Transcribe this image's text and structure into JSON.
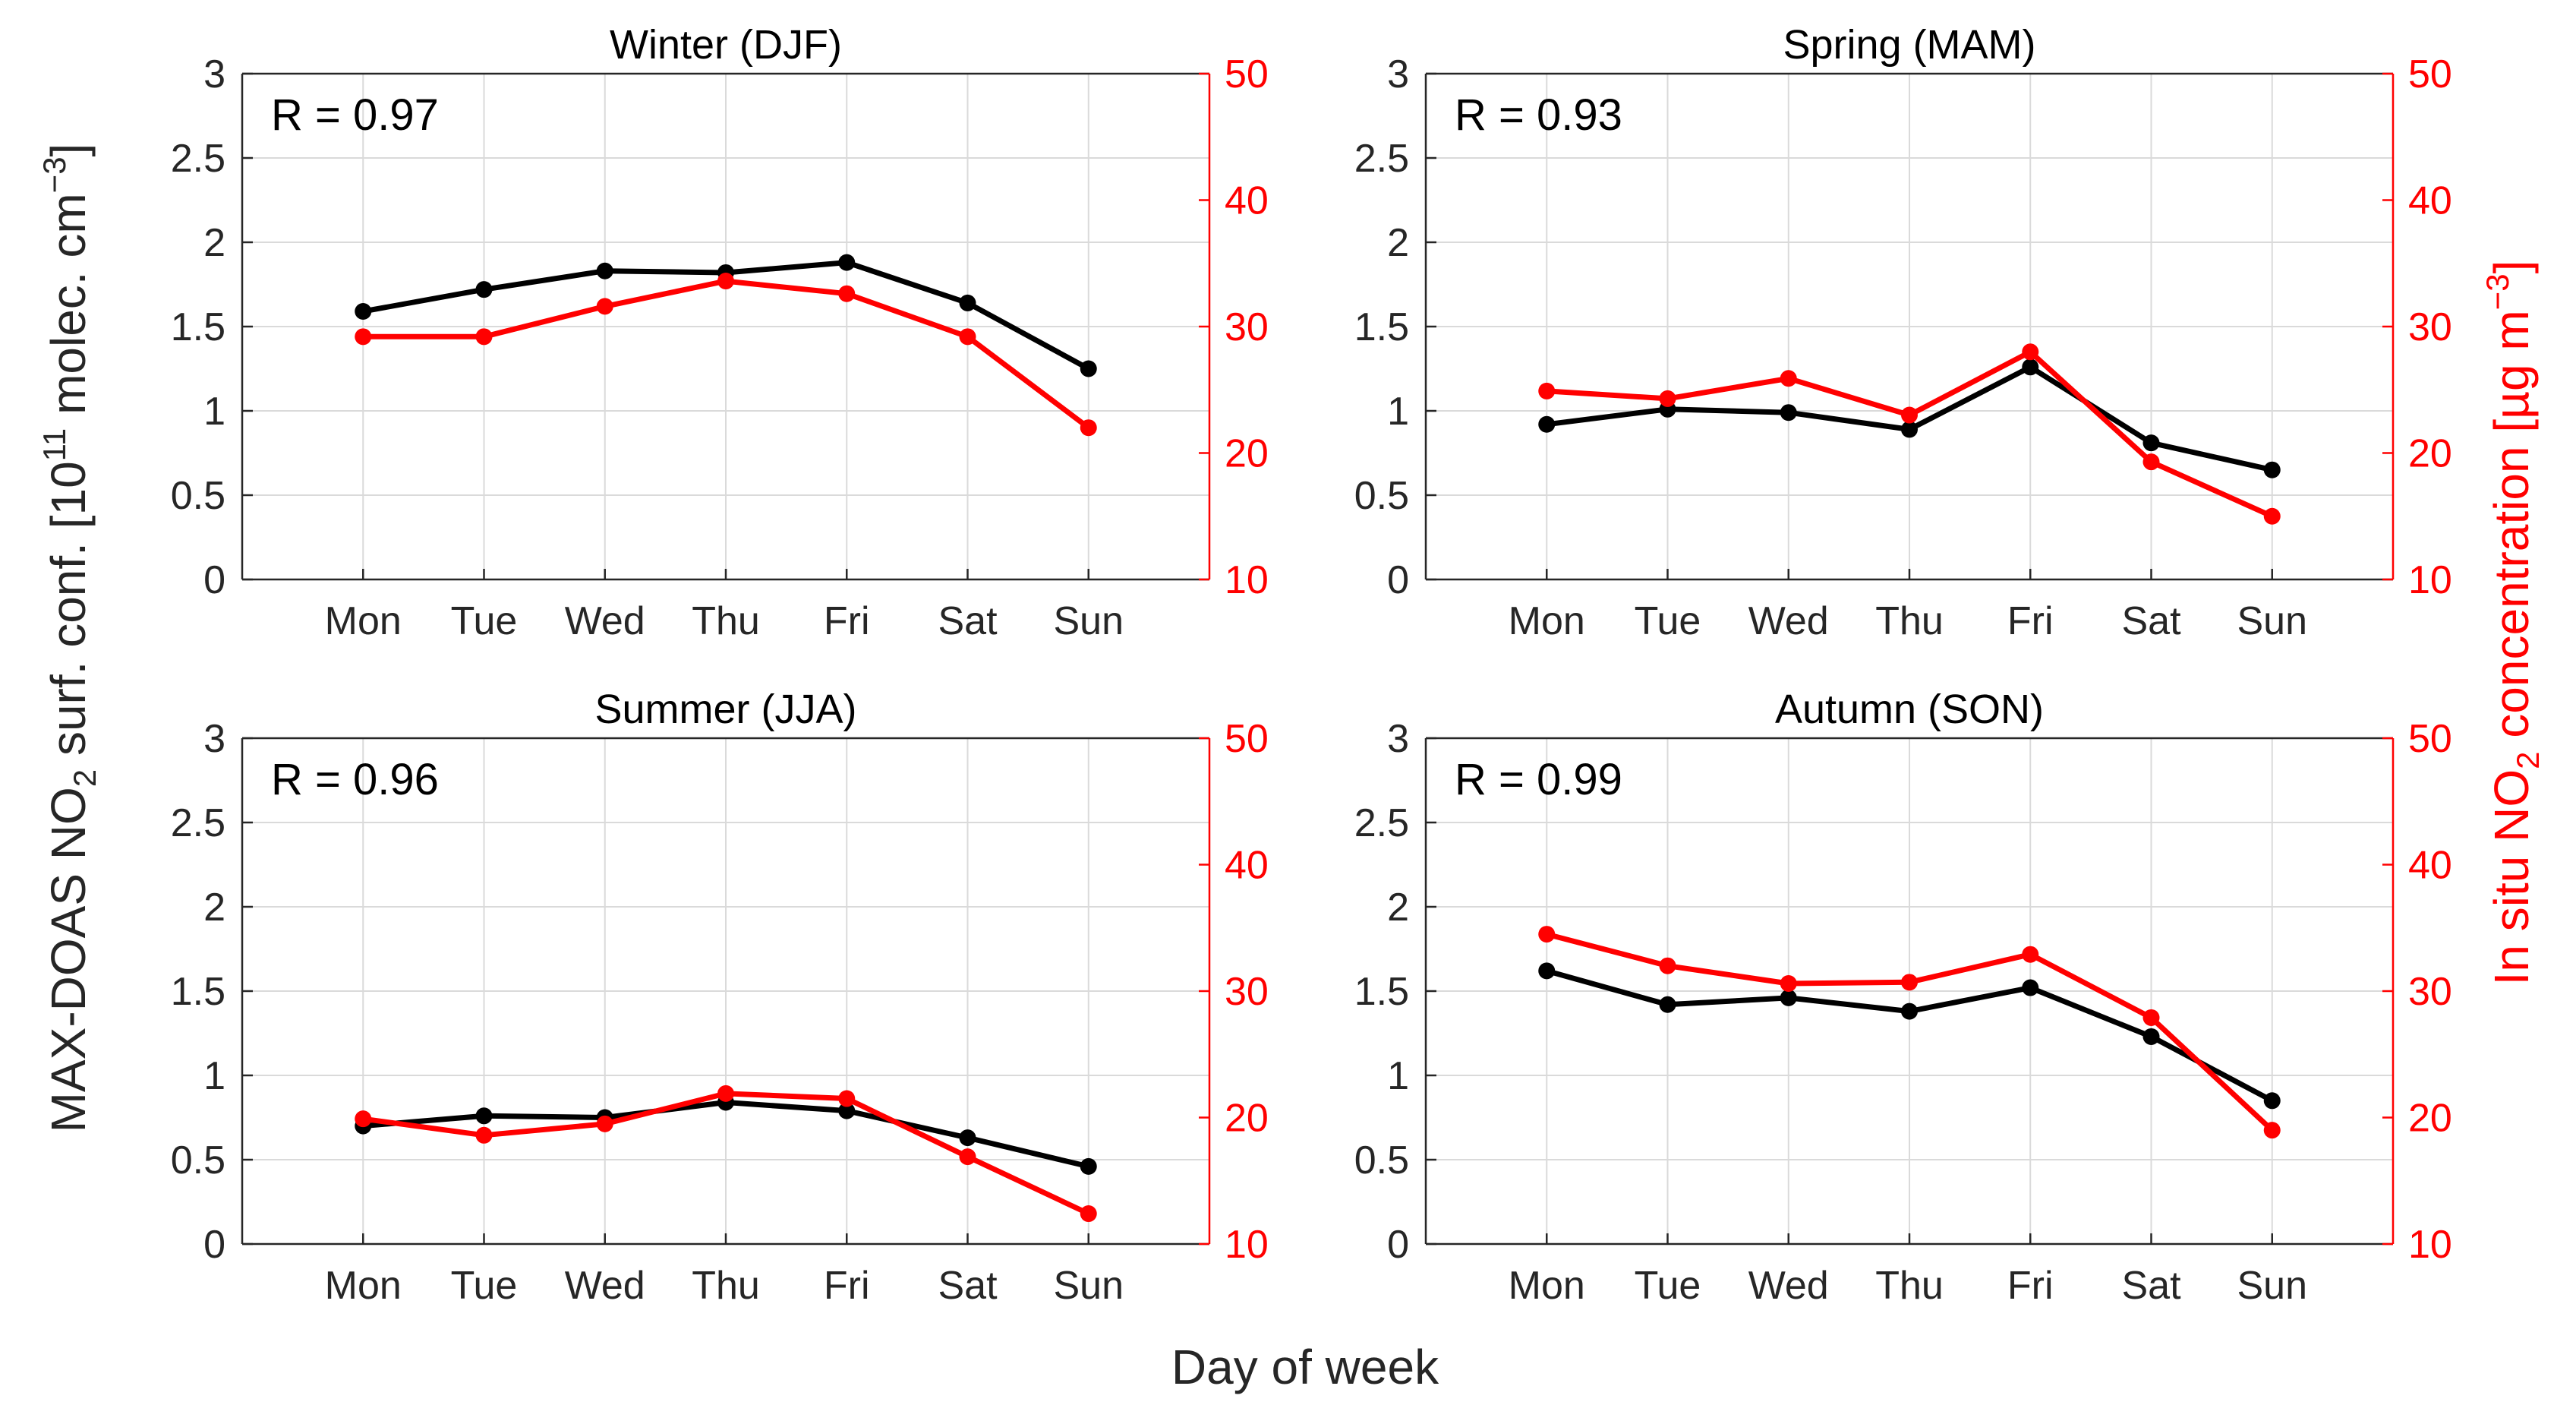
{
  "figure": {
    "xlabel": "Day of week",
    "ylabel_left_parts": [
      "MAX-DOAS NO",
      "2",
      " surf. conf. [10",
      "11",
      " molec. cm",
      "−3",
      "]"
    ],
    "ylabel_right_parts": [
      "In situ NO",
      "2",
      " concentration [µg m",
      "−3",
      "]"
    ]
  },
  "colors": {
    "left_series": "#000000",
    "right_series": "#ff0000",
    "grid": "#dadada",
    "axis": "#262626"
  },
  "chart_data": [
    {
      "type": "line",
      "title": "Winter (DJF)",
      "annotation": "R = 0.97",
      "categories": [
        "Mon",
        "Tue",
        "Wed",
        "Thu",
        "Fri",
        "Sat",
        "Sun"
      ],
      "left_ylim": [
        0,
        3
      ],
      "left_yticks": [
        "0",
        "0.5",
        "1",
        "1.5",
        "2",
        "2.5",
        "3"
      ],
      "right_ylim": [
        10,
        50
      ],
      "right_yticks": [
        "10",
        "20",
        "30",
        "40",
        "50"
      ],
      "series": [
        {
          "name": "MAX-DOAS NO2 surf. conf.",
          "axis": "left",
          "values": [
            1.59,
            1.72,
            1.83,
            1.82,
            1.88,
            1.64,
            1.25
          ]
        },
        {
          "name": "In situ NO2 concentration",
          "axis": "right",
          "values": [
            29.2,
            29.2,
            31.6,
            33.6,
            32.6,
            29.2,
            22.0
          ]
        }
      ]
    },
    {
      "type": "line",
      "title": "Spring (MAM)",
      "annotation": "R = 0.93",
      "categories": [
        "Mon",
        "Tue",
        "Wed",
        "Thu",
        "Fri",
        "Sat",
        "Sun"
      ],
      "left_ylim": [
        0,
        3
      ],
      "left_yticks": [
        "0",
        "0.5",
        "1",
        "1.5",
        "2",
        "2.5",
        "3"
      ],
      "right_ylim": [
        10,
        50
      ],
      "right_yticks": [
        "10",
        "20",
        "30",
        "40",
        "50"
      ],
      "series": [
        {
          "name": "MAX-DOAS NO2 surf. conf.",
          "axis": "left",
          "values": [
            0.92,
            1.01,
            0.99,
            0.89,
            1.26,
            0.81,
            0.65
          ]
        },
        {
          "name": "In situ NO2 concentration",
          "axis": "right",
          "values": [
            24.9,
            24.3,
            25.9,
            23.0,
            28.0,
            19.3,
            15.0
          ]
        }
      ]
    },
    {
      "type": "line",
      "title": "Summer (JJA)",
      "annotation": "R = 0.96",
      "categories": [
        "Mon",
        "Tue",
        "Wed",
        "Thu",
        "Fri",
        "Sat",
        "Sun"
      ],
      "left_ylim": [
        0,
        3
      ],
      "left_yticks": [
        "0",
        "0.5",
        "1",
        "1.5",
        "2",
        "2.5",
        "3"
      ],
      "right_ylim": [
        10,
        50
      ],
      "right_yticks": [
        "10",
        "20",
        "30",
        "40",
        "50"
      ],
      "series": [
        {
          "name": "MAX-DOAS NO2 surf. conf.",
          "axis": "left",
          "values": [
            0.7,
            0.76,
            0.75,
            0.84,
            0.79,
            0.63,
            0.46
          ]
        },
        {
          "name": "In situ NO2 concentration",
          "axis": "right",
          "values": [
            19.9,
            18.6,
            19.5,
            21.9,
            21.5,
            16.9,
            12.4
          ]
        }
      ]
    },
    {
      "type": "line",
      "title": "Autumn (SON)",
      "annotation": "R = 0.99",
      "categories": [
        "Mon",
        "Tue",
        "Wed",
        "Thu",
        "Fri",
        "Sat",
        "Sun"
      ],
      "left_ylim": [
        0,
        3
      ],
      "left_yticks": [
        "0",
        "0.5",
        "1",
        "1.5",
        "2",
        "2.5",
        "3"
      ],
      "right_ylim": [
        10,
        50
      ],
      "right_yticks": [
        "10",
        "20",
        "30",
        "40",
        "50"
      ],
      "series": [
        {
          "name": "MAX-DOAS NO2 surf. conf.",
          "axis": "left",
          "values": [
            1.62,
            1.42,
            1.46,
            1.38,
            1.52,
            1.23,
            0.85
          ]
        },
        {
          "name": "In situ NO2 concentration",
          "axis": "right",
          "values": [
            34.5,
            32.0,
            30.6,
            30.7,
            32.9,
            27.9,
            19.0
          ]
        }
      ]
    }
  ]
}
